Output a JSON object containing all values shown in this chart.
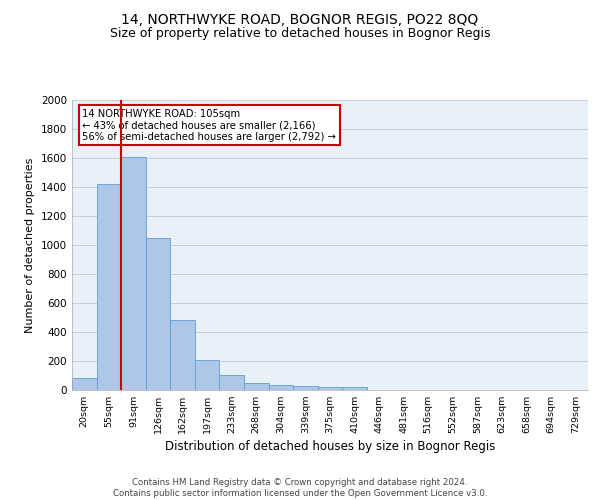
{
  "title": "14, NORTHWYKE ROAD, BOGNOR REGIS, PO22 8QQ",
  "subtitle": "Size of property relative to detached houses in Bognor Regis",
  "xlabel": "Distribution of detached houses by size in Bognor Regis",
  "ylabel": "Number of detached properties",
  "categories": [
    "20sqm",
    "55sqm",
    "91sqm",
    "126sqm",
    "162sqm",
    "197sqm",
    "233sqm",
    "268sqm",
    "304sqm",
    "339sqm",
    "375sqm",
    "410sqm",
    "446sqm",
    "481sqm",
    "516sqm",
    "552sqm",
    "587sqm",
    "623sqm",
    "658sqm",
    "694sqm",
    "729sqm"
  ],
  "values": [
    80,
    1420,
    1610,
    1050,
    480,
    205,
    105,
    48,
    35,
    25,
    20,
    20,
    0,
    0,
    0,
    0,
    0,
    0,
    0,
    0,
    0
  ],
  "bar_color": "#aec6e8",
  "bar_edge_color": "#5a9fd4",
  "vline_color": "#cc0000",
  "vline_x_index": 1.5,
  "annotation_text": "14 NORTHWYKE ROAD: 105sqm\n← 43% of detached houses are smaller (2,166)\n56% of semi-detached houses are larger (2,792) →",
  "annotation_box_color": "#cc0000",
  "ylim": [
    0,
    2000
  ],
  "yticks": [
    0,
    200,
    400,
    600,
    800,
    1000,
    1200,
    1400,
    1600,
    1800,
    2000
  ],
  "title_fontsize": 10,
  "subtitle_fontsize": 9,
  "xlabel_fontsize": 8.5,
  "ylabel_fontsize": 8,
  "footer_line1": "Contains HM Land Registry data © Crown copyright and database right 2024.",
  "footer_line2": "Contains public sector information licensed under the Open Government Licence v3.0.",
  "background_color": "#ffffff",
  "plot_bg_color": "#e8f0f8",
  "grid_color": "#c0c8d8"
}
